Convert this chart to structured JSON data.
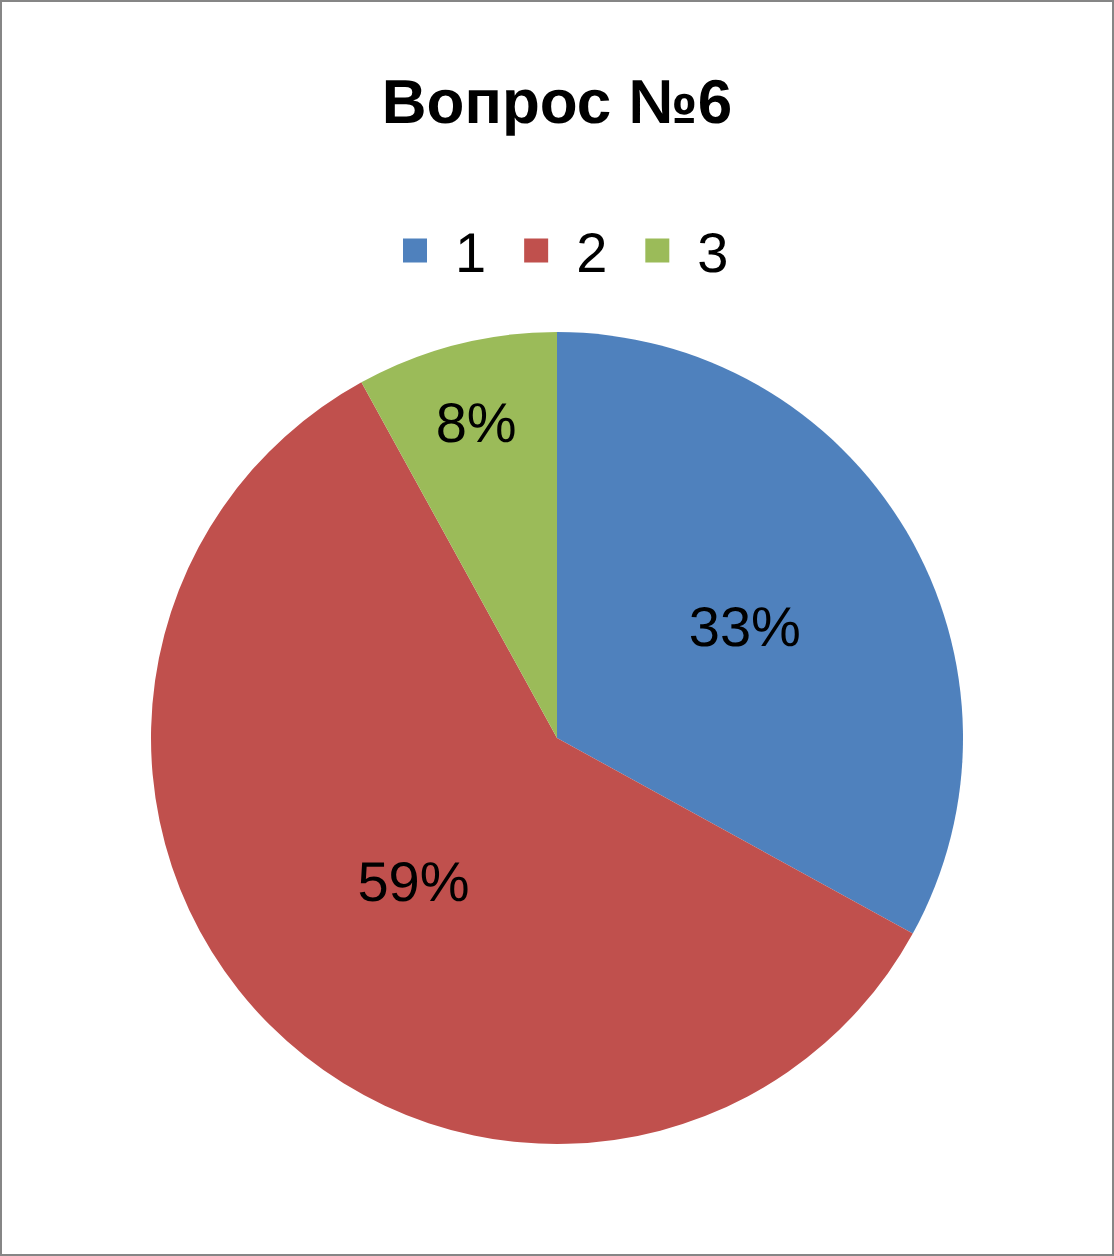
{
  "chart_data": {
    "type": "pie",
    "title": "Вопрос №6",
    "categories": [
      "1",
      "2",
      "3"
    ],
    "values": [
      33,
      59,
      8
    ],
    "colors": [
      "#4f81bd",
      "#c0504d",
      "#9bbb59"
    ],
    "value_labels": [
      "33%",
      "59%",
      "8%"
    ],
    "legend": "top"
  }
}
